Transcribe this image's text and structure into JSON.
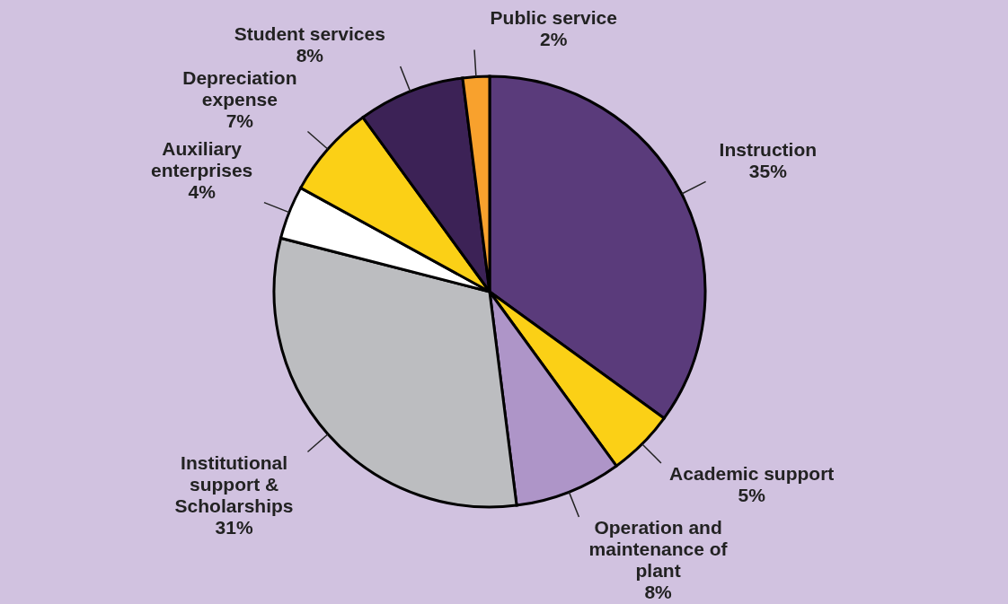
{
  "chart_data": {
    "type": "pie",
    "categories": [
      "Instruction",
      "Academic support",
      "Operation and maintenance of plant",
      "Institutional support & Scholarships",
      "Auxiliary enterprises",
      "Depreciation expense",
      "Student services",
      "Public service"
    ],
    "values": [
      35,
      5,
      8,
      31,
      4,
      7,
      8,
      2
    ],
    "value_labels": [
      "35%",
      "5%",
      "8%",
      "31%",
      "4%",
      "7%",
      "8%",
      "2%"
    ],
    "colors": [
      "#5a3b7b",
      "#fbd016",
      "#ae95c8",
      "#bcbdc0",
      "#ffffff",
      "#fbd016",
      "#3c2256",
      "#f8a12d"
    ],
    "legend": false
  }
}
